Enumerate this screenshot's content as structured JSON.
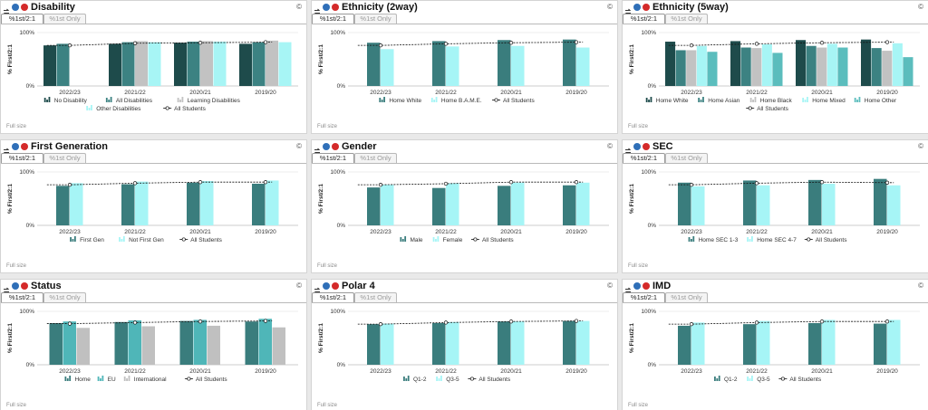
{
  "colors": {
    "s1": "#1e4b4b",
    "s2": "#3c8282",
    "s3": "#c2c2c2",
    "s4": "#a7f5f5",
    "s5": "#5bbdbd",
    "primary": "#3a7d7d",
    "secondary": "#a6f5f6",
    "grey": "#c0c0c0",
    "mid": "#4fb6b8"
  },
  "tabs": [
    "%1st/2:1",
    "%1st Only"
  ],
  "copyright": "©",
  "full_size": "Full size",
  "all_students_label": "All Students",
  "panels": [
    {
      "title": "Disability",
      "chart_data": {
        "type": "bar",
        "ylabel": "% First/2:1",
        "ylim": [
          0,
          100
        ],
        "yticks": [
          "100%",
          "0%"
        ],
        "categories": [
          "2022/23",
          "2021/22",
          "2020/21",
          "2019/20"
        ],
        "series": [
          {
            "name": "No Disability",
            "color": "s1",
            "values": [
              76,
              79,
              81,
              79
            ]
          },
          {
            "name": "All Disabilities",
            "color": "s2",
            "values": [
              79,
              82,
              83,
              82
            ]
          },
          {
            "name": "Learning Disabilities",
            "color": "s3",
            "values": [
              null,
              84,
              84,
              85
            ]
          },
          {
            "name": "Other Disabilities",
            "color": "s4",
            "values": [
              null,
              82,
              83,
              82
            ]
          }
        ],
        "all_students": [
          76,
          80,
          81,
          82
        ]
      }
    },
    {
      "title": "Ethnicity (2way)",
      "chart_data": {
        "type": "bar",
        "ylabel": "% First/2:1",
        "ylim": [
          0,
          100
        ],
        "yticks": [
          "100%",
          "0%"
        ],
        "categories": [
          "2022/23",
          "2021/22",
          "2020/21",
          "2019/20"
        ],
        "series": [
          {
            "name": "Home White",
            "color": "primary",
            "values": [
              81,
              84,
              86,
              87
            ]
          },
          {
            "name": "Home B.A.M.E.",
            "color": "secondary",
            "values": [
              69,
              74,
              75,
              72
            ]
          }
        ],
        "all_students": [
          76,
          79,
          81,
          82
        ]
      }
    },
    {
      "title": "Ethnicity (5way)",
      "chart_data": {
        "type": "bar",
        "ylabel": "% First/2:1",
        "ylim": [
          0,
          100
        ],
        "yticks": [
          "100%",
          "0%"
        ],
        "categories": [
          "2022/23",
          "2021/22",
          "2020/21",
          "2019/20"
        ],
        "series": [
          {
            "name": "Home White",
            "color": "s1",
            "values": [
              83,
              84,
              86,
              87
            ]
          },
          {
            "name": "Home Asian",
            "color": "s2",
            "values": [
              67,
              72,
              75,
              71
            ]
          },
          {
            "name": "Home Black",
            "color": "s3",
            "values": [
              67,
              71,
              72,
              66
            ]
          },
          {
            "name": "Home Mixed",
            "color": "s4",
            "values": [
              75,
              78,
              79,
              80
            ]
          },
          {
            "name": "Home Other",
            "color": "s5",
            "values": [
              64,
              62,
              72,
              54
            ]
          }
        ],
        "all_students": [
          76,
          79,
          81,
          82
        ]
      }
    },
    {
      "title": "First Generation",
      "chart_data": {
        "type": "bar",
        "ylabel": "% First/2:1",
        "ylim": [
          0,
          100
        ],
        "yticks": [
          "100%",
          "0%"
        ],
        "categories": [
          "2022/23",
          "2021/22",
          "2020/21",
          "2019/20"
        ],
        "series": [
          {
            "name": "First Gen",
            "color": "primary",
            "values": [
              74,
              77,
              80,
              78
            ]
          },
          {
            "name": "Not First Gen",
            "color": "secondary",
            "values": [
              79,
              82,
              83,
              84
            ]
          }
        ],
        "all_students": [
          76,
          79,
          81,
          81
        ]
      }
    },
    {
      "title": "Gender",
      "chart_data": {
        "type": "bar",
        "ylabel": "% First/2:1",
        "ylim": [
          0,
          100
        ],
        "yticks": [
          "100%",
          "0%"
        ],
        "categories": [
          "2022/23",
          "2021/22",
          "2020/21",
          "2019/20"
        ],
        "series": [
          {
            "name": "Male",
            "color": "primary",
            "values": [
              71,
              70,
              74,
              75
            ]
          },
          {
            "name": "Female",
            "color": "secondary",
            "values": [
              76,
              79,
              80,
              80
            ]
          }
        ],
        "all_students": [
          76,
          78,
          81,
          81
        ]
      }
    },
    {
      "title": "SEC",
      "chart_data": {
        "type": "bar",
        "ylabel": "% First/2:1",
        "ylim": [
          0,
          100
        ],
        "yticks": [
          "100%",
          "0%"
        ],
        "categories": [
          "2022/23",
          "2021/22",
          "2020/21",
          "2019/20"
        ],
        "series": [
          {
            "name": "Home SEC 1-3",
            "color": "primary",
            "values": [
              80,
              84,
              85,
              87
            ]
          },
          {
            "name": "Home SEC 4-7",
            "color": "secondary",
            "values": [
              73,
              75,
              78,
              75
            ]
          }
        ],
        "all_students": [
          76,
          79,
          81,
          80
        ]
      }
    },
    {
      "title": "Status",
      "chart_data": {
        "type": "bar",
        "ylabel": "% First/2:1",
        "ylim": [
          0,
          100
        ],
        "yticks": [
          "100%",
          "0%"
        ],
        "categories": [
          "2022/23",
          "2021/22",
          "2020/21",
          "2019/20"
        ],
        "series": [
          {
            "name": "Home",
            "color": "primary",
            "values": [
              78,
              80,
              82,
              81
            ]
          },
          {
            "name": "EU",
            "color": "mid",
            "values": [
              81,
              83,
              84,
              86
            ]
          },
          {
            "name": "International",
            "color": "grey",
            "values": [
              69,
              72,
              73,
              70
            ]
          }
        ],
        "all_students": [
          77,
          79,
          81,
          82
        ]
      }
    },
    {
      "title": "Polar 4",
      "chart_data": {
        "type": "bar",
        "ylabel": "% First/2:1",
        "ylim": [
          0,
          100
        ],
        "yticks": [
          "100%",
          "0%"
        ],
        "categories": [
          "2022/23",
          "2021/22",
          "2020/21",
          "2019/20"
        ],
        "series": [
          {
            "name": "Q1-2",
            "color": "primary",
            "values": [
              76,
              78,
              81,
              82
            ]
          },
          {
            "name": "Q3-5",
            "color": "secondary",
            "values": [
              77,
              80,
              81,
              82
            ]
          }
        ],
        "all_students": [
          76,
          79,
          81,
          82
        ]
      }
    },
    {
      "title": "IMD",
      "chart_data": {
        "type": "bar",
        "ylabel": "% First/2:1",
        "ylim": [
          0,
          100
        ],
        "yticks": [
          "100%",
          "0%"
        ],
        "categories": [
          "2022/23",
          "2021/22",
          "2020/21",
          "2019/20"
        ],
        "series": [
          {
            "name": "Q1-2",
            "color": "primary",
            "values": [
              73,
              76,
              78,
              77
            ]
          },
          {
            "name": "Q3-5",
            "color": "secondary",
            "values": [
              79,
              82,
              84,
              84
            ]
          }
        ],
        "all_students": [
          76,
          79,
          81,
          81
        ]
      }
    }
  ]
}
